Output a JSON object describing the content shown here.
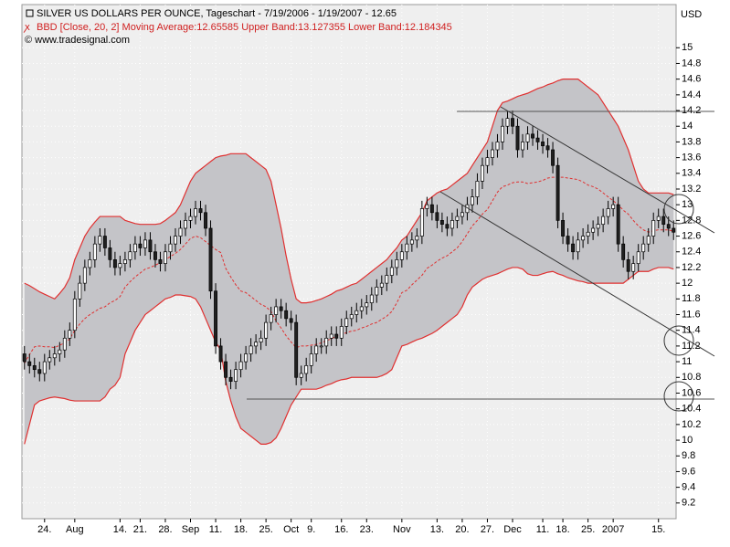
{
  "chart_data": {
    "type": "candlestick",
    "title": "SILVER US DOLLARS PER OUNCE, Tageschart - 7/19/2006 - 1/19/2007 - 12.65",
    "subtitle": "BBD [Close, 20, 2] Moving Average:12.65585 Upper Band:13.127355 Lower Band:12.184345",
    "source": "© www.tradesignal.com",
    "unit": "USD",
    "categories": [
      null,
      null,
      null,
      null,
      "24.",
      null,
      null,
      null,
      null,
      null,
      "Aug",
      null,
      null,
      null,
      null,
      null,
      null,
      null,
      null,
      "14.",
      null,
      null,
      null,
      "21.",
      null,
      null,
      null,
      null,
      "28.",
      null,
      null,
      null,
      null,
      "Sep",
      null,
      null,
      null,
      null,
      "11.",
      null,
      null,
      null,
      null,
      "18.",
      null,
      null,
      null,
      null,
      "25.",
      null,
      null,
      null,
      null,
      "Oct",
      null,
      null,
      null,
      "9.",
      null,
      null,
      null,
      null,
      null,
      "16.",
      null,
      null,
      null,
      null,
      "23.",
      null,
      null,
      null,
      null,
      null,
      null,
      "Nov",
      null,
      null,
      null,
      null,
      null,
      null,
      "13.",
      null,
      null,
      null,
      null,
      "20.",
      null,
      null,
      null,
      null,
      "27.",
      null,
      null,
      null,
      null,
      "Dec",
      null,
      null,
      null,
      null,
      null,
      "11.",
      null,
      null,
      null,
      "18.",
      null,
      null,
      null,
      null,
      "25.",
      null,
      null,
      null,
      null,
      "2007",
      null,
      null,
      null,
      null,
      null,
      null,
      null,
      null,
      "15.",
      null,
      null,
      null
    ],
    "open": [
      11.1,
      11.0,
      10.95,
      10.9,
      10.85,
      11.0,
      11.05,
      11.1,
      11.15,
      11.3,
      11.4,
      11.8,
      12.0,
      12.2,
      12.3,
      12.5,
      12.6,
      12.45,
      12.3,
      12.2,
      12.25,
      12.3,
      12.4,
      12.5,
      12.45,
      12.55,
      12.4,
      12.3,
      12.25,
      12.4,
      12.5,
      12.6,
      12.7,
      12.8,
      12.85,
      12.95,
      12.9,
      12.7,
      11.9,
      11.2,
      11.0,
      10.8,
      10.75,
      10.9,
      11.0,
      11.1,
      11.2,
      11.25,
      11.3,
      11.5,
      11.6,
      11.7,
      11.65,
      11.55,
      11.5,
      10.8,
      10.85,
      10.95,
      11.1,
      11.2,
      11.2,
      11.3,
      11.35,
      11.3,
      11.45,
      11.55,
      11.6,
      11.65,
      11.7,
      11.75,
      11.85,
      11.95,
      12.0,
      12.1,
      12.2,
      12.3,
      12.4,
      12.5,
      12.55,
      12.6,
      12.95,
      13.0,
      12.9,
      12.8,
      12.75,
      12.7,
      12.8,
      12.85,
      12.9,
      13.0,
      13.1,
      13.3,
      13.5,
      13.6,
      13.7,
      13.8,
      14.0,
      14.1,
      14.0,
      13.7,
      13.8,
      13.9,
      13.85,
      13.8,
      13.75,
      13.7,
      13.5,
      12.8,
      12.6,
      12.5,
      12.4,
      12.55,
      12.6,
      12.65,
      12.7,
      12.75,
      12.85,
      12.95,
      13.0,
      12.5,
      12.3,
      12.15,
      12.25,
      12.4,
      12.5,
      12.6,
      12.8,
      12.85,
      12.75,
      12.7
    ],
    "high": [
      11.2,
      11.1,
      11.05,
      11.0,
      11.1,
      11.15,
      11.2,
      11.25,
      11.4,
      11.5,
      11.9,
      12.1,
      12.3,
      12.4,
      12.6,
      12.7,
      12.7,
      12.55,
      12.4,
      12.35,
      12.4,
      12.5,
      12.6,
      12.6,
      12.65,
      12.65,
      12.5,
      12.4,
      12.5,
      12.6,
      12.7,
      12.8,
      12.9,
      12.95,
      13.05,
      13.05,
      13.0,
      12.8,
      12.0,
      11.3,
      11.1,
      10.9,
      11.0,
      11.1,
      11.2,
      11.3,
      11.35,
      11.4,
      11.6,
      11.7,
      11.8,
      11.8,
      11.75,
      11.65,
      11.6,
      10.95,
      11.05,
      11.2,
      11.3,
      11.3,
      11.4,
      11.45,
      11.45,
      11.55,
      11.65,
      11.7,
      11.75,
      11.8,
      11.85,
      11.95,
      12.05,
      12.1,
      12.2,
      12.3,
      12.4,
      12.5,
      12.6,
      12.65,
      12.7,
      13.05,
      13.1,
      13.1,
      13.0,
      12.9,
      12.85,
      12.9,
      12.95,
      13.0,
      13.1,
      13.2,
      13.4,
      13.6,
      13.7,
      13.8,
      13.9,
      14.1,
      14.2,
      14.2,
      14.1,
      13.9,
      14.0,
      14.0,
      13.95,
      13.9,
      13.85,
      13.8,
      13.6,
      12.9,
      12.7,
      12.6,
      12.65,
      12.7,
      12.75,
      12.8,
      12.85,
      12.95,
      13.05,
      13.1,
      13.1,
      12.6,
      12.4,
      12.35,
      12.5,
      12.6,
      12.7,
      12.9,
      12.95,
      12.95,
      12.85,
      12.8
    ],
    "low": [
      10.9,
      10.85,
      10.8,
      10.75,
      10.75,
      10.9,
      10.95,
      11.0,
      11.05,
      11.2,
      11.3,
      11.7,
      11.9,
      12.1,
      12.2,
      12.4,
      12.35,
      12.2,
      12.1,
      12.1,
      12.15,
      12.2,
      12.3,
      12.35,
      12.35,
      12.3,
      12.2,
      12.15,
      12.15,
      12.3,
      12.4,
      12.5,
      12.6,
      12.7,
      12.75,
      12.8,
      12.6,
      11.8,
      11.1,
      10.9,
      10.7,
      10.65,
      10.65,
      10.8,
      10.9,
      11.0,
      11.1,
      11.15,
      11.2,
      11.4,
      11.5,
      11.55,
      11.45,
      11.4,
      10.7,
      10.7,
      10.75,
      10.85,
      11.0,
      11.1,
      11.1,
      11.2,
      11.2,
      11.2,
      11.35,
      11.45,
      11.5,
      11.55,
      11.6,
      11.65,
      11.75,
      11.85,
      11.9,
      12.0,
      12.1,
      12.2,
      12.3,
      12.4,
      12.45,
      12.5,
      12.85,
      12.8,
      12.7,
      12.65,
      12.6,
      12.6,
      12.7,
      12.75,
      12.8,
      12.9,
      13.0,
      13.2,
      13.4,
      13.5,
      13.6,
      13.7,
      13.9,
      13.9,
      13.6,
      13.6,
      13.7,
      13.75,
      13.7,
      13.65,
      13.6,
      13.4,
      12.7,
      12.5,
      12.4,
      12.3,
      12.3,
      12.45,
      12.5,
      12.55,
      12.6,
      12.65,
      12.75,
      12.85,
      12.4,
      12.2,
      12.05,
      12.05,
      12.15,
      12.3,
      12.4,
      12.5,
      12.7,
      12.65,
      12.6,
      12.55
    ],
    "close": [
      11.0,
      10.95,
      10.9,
      10.85,
      11.0,
      11.05,
      11.1,
      11.15,
      11.3,
      11.4,
      11.8,
      12.0,
      12.2,
      12.3,
      12.5,
      12.6,
      12.45,
      12.3,
      12.2,
      12.25,
      12.3,
      12.4,
      12.5,
      12.45,
      12.55,
      12.4,
      12.3,
      12.25,
      12.4,
      12.5,
      12.6,
      12.7,
      12.8,
      12.85,
      12.95,
      12.9,
      12.7,
      11.9,
      11.2,
      11.0,
      10.8,
      10.75,
      10.9,
      11.0,
      11.1,
      11.2,
      11.25,
      11.3,
      11.5,
      11.6,
      11.7,
      11.65,
      11.55,
      11.5,
      10.8,
      10.85,
      10.95,
      11.1,
      11.2,
      11.2,
      11.3,
      11.35,
      11.3,
      11.45,
      11.55,
      11.6,
      11.65,
      11.7,
      11.75,
      11.85,
      11.95,
      12.0,
      12.1,
      12.2,
      12.3,
      12.4,
      12.5,
      12.55,
      12.6,
      12.95,
      13.0,
      12.9,
      12.8,
      12.75,
      12.7,
      12.8,
      12.85,
      12.9,
      13.0,
      13.1,
      13.3,
      13.5,
      13.6,
      13.7,
      13.8,
      14.0,
      14.1,
      14.0,
      13.7,
      13.8,
      13.9,
      13.85,
      13.8,
      13.75,
      13.7,
      13.5,
      12.8,
      12.6,
      12.5,
      12.4,
      12.55,
      12.6,
      12.65,
      12.7,
      12.75,
      12.85,
      12.95,
      13.0,
      12.5,
      12.3,
      12.15,
      12.25,
      12.4,
      12.5,
      12.6,
      12.8,
      12.85,
      12.75,
      12.7,
      12.65
    ],
    "upper": [
      12.0,
      11.97,
      11.93,
      11.89,
      11.86,
      11.83,
      11.8,
      11.87,
      11.95,
      12.07,
      12.3,
      12.45,
      12.6,
      12.7,
      12.78,
      12.85,
      12.85,
      12.85,
      12.85,
      12.85,
      12.8,
      12.78,
      12.76,
      12.75,
      12.75,
      12.75,
      12.75,
      12.76,
      12.8,
      12.85,
      12.9,
      13.0,
      13.15,
      13.3,
      13.4,
      13.45,
      13.5,
      13.55,
      13.6,
      13.62,
      13.63,
      13.65,
      13.65,
      13.65,
      13.65,
      13.6,
      13.55,
      13.5,
      13.45,
      13.3,
      13.0,
      12.7,
      12.35,
      12.05,
      11.8,
      11.75,
      11.75,
      11.76,
      11.78,
      11.8,
      11.83,
      11.86,
      11.9,
      11.92,
      11.95,
      11.98,
      12.0,
      12.05,
      12.1,
      12.15,
      12.2,
      12.25,
      12.3,
      12.38,
      12.45,
      12.55,
      12.6,
      12.7,
      12.8,
      12.9,
      13.05,
      13.1,
      13.15,
      13.18,
      13.2,
      13.25,
      13.3,
      13.35,
      13.4,
      13.5,
      13.6,
      13.7,
      13.8,
      14.0,
      14.2,
      14.3,
      14.32,
      14.35,
      14.38,
      14.4,
      14.42,
      14.45,
      14.48,
      14.5,
      14.53,
      14.55,
      14.58,
      14.6,
      14.6,
      14.6,
      14.6,
      14.55,
      14.5,
      14.45,
      14.4,
      14.3,
      14.2,
      14.1,
      14.0,
      13.85,
      13.7,
      13.5,
      13.3,
      13.2,
      13.15,
      13.15,
      13.15,
      13.15,
      13.15,
      13.13
    ],
    "middle": [
      10.98,
      11.09,
      11.19,
      11.2,
      11.19,
      11.19,
      11.18,
      11.21,
      11.24,
      11.29,
      11.4,
      11.48,
      11.55,
      11.6,
      11.64,
      11.68,
      11.7,
      11.75,
      11.78,
      11.83,
      11.95,
      12.02,
      12.08,
      12.13,
      12.18,
      12.2,
      12.23,
      12.26,
      12.3,
      12.34,
      12.38,
      12.43,
      12.5,
      12.57,
      12.6,
      12.58,
      12.53,
      12.48,
      12.43,
      12.39,
      12.19,
      12.08,
      11.98,
      11.9,
      11.88,
      11.83,
      11.78,
      11.73,
      11.7,
      11.64,
      11.52,
      11.43,
      11.33,
      11.25,
      11.18,
      11.2,
      11.2,
      11.21,
      11.22,
      11.24,
      11.27,
      11.29,
      11.33,
      11.35,
      11.37,
      11.39,
      11.4,
      11.43,
      11.45,
      11.48,
      11.5,
      11.54,
      11.58,
      11.64,
      11.75,
      11.88,
      11.91,
      11.98,
      12.04,
      12.1,
      12.19,
      12.23,
      12.28,
      12.32,
      12.35,
      12.4,
      12.45,
      12.53,
      12.63,
      12.73,
      12.8,
      12.88,
      12.94,
      13.05,
      13.16,
      13.23,
      13.25,
      13.28,
      13.29,
      13.29,
      13.27,
      13.28,
      13.29,
      13.31,
      13.34,
      13.35,
      13.35,
      13.35,
      13.34,
      13.33,
      13.32,
      13.29,
      13.25,
      13.23,
      13.2,
      13.15,
      13.1,
      13.05,
      13.0,
      12.93,
      12.88,
      12.8,
      12.73,
      12.68,
      12.65,
      12.67,
      12.68,
      12.68,
      12.68,
      12.66
    ],
    "lower": [
      9.95,
      10.2,
      10.45,
      10.5,
      10.52,
      10.54,
      10.55,
      10.54,
      10.53,
      10.51,
      10.5,
      10.5,
      10.5,
      10.5,
      10.5,
      10.5,
      10.55,
      10.65,
      10.7,
      10.8,
      11.1,
      11.25,
      11.4,
      11.5,
      11.6,
      11.65,
      11.7,
      11.75,
      11.8,
      11.82,
      11.85,
      11.85,
      11.84,
      11.83,
      11.8,
      11.7,
      11.55,
      11.4,
      11.25,
      11.15,
      10.75,
      10.5,
      10.3,
      10.15,
      10.1,
      10.05,
      10.0,
      9.95,
      9.95,
      9.97,
      10.03,
      10.15,
      10.3,
      10.45,
      10.55,
      10.65,
      10.65,
      10.65,
      10.65,
      10.67,
      10.7,
      10.72,
      10.75,
      10.77,
      10.78,
      10.8,
      10.8,
      10.8,
      10.8,
      10.8,
      10.8,
      10.82,
      10.85,
      10.9,
      11.05,
      11.2,
      11.22,
      11.25,
      11.28,
      11.3,
      11.33,
      11.36,
      11.4,
      11.45,
      11.5,
      11.55,
      11.6,
      11.7,
      11.85,
      11.95,
      12.0,
      12.05,
      12.08,
      12.1,
      12.12,
      12.15,
      12.18,
      12.2,
      12.2,
      12.18,
      12.12,
      12.1,
      12.1,
      12.12,
      12.14,
      12.15,
      12.12,
      12.1,
      12.07,
      12.05,
      12.03,
      12.02,
      12.0,
      12.0,
      12.0,
      12.0,
      12.0,
      12.0,
      12.0,
      12.0,
      12.05,
      12.1,
      12.15,
      12.15,
      12.15,
      12.18,
      12.2,
      12.2,
      12.2,
      12.18
    ],
    "band_color": "#e03030",
    "band_fill": "#c4c4c8",
    "up_color": "#ffffff",
    "down_color": "#202020",
    "ylim": [
      9.0,
      15.55
    ],
    "yticks": [
      9.2,
      9.4,
      9.6,
      9.8,
      10,
      10.2,
      10.4,
      10.6,
      10.8,
      11,
      11.2,
      11.4,
      11.6,
      11.8,
      12,
      12.2,
      12.4,
      12.6,
      12.8,
      13,
      13.2,
      13.4,
      13.6,
      13.8,
      14,
      14.2,
      14.4,
      14.6,
      14.8,
      15
    ],
    "grid": true
  }
}
